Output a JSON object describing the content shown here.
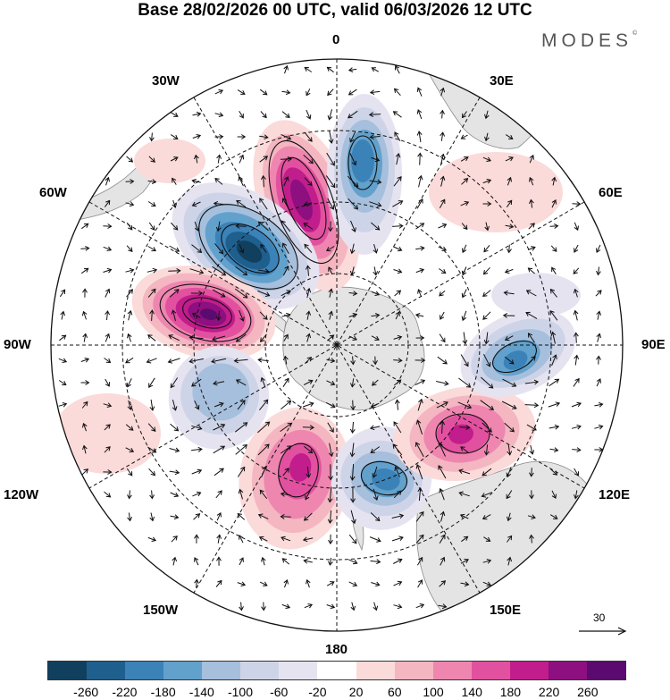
{
  "title": "Base 28/02/2026 00 UTC, valid 06/03/2026 12 UTC",
  "brand": "MODES",
  "brand_mark": "©",
  "longitude_labels": {
    "lon_0": "0",
    "lon_30e": "30E",
    "lon_60e": "60E",
    "lon_90e": "90E",
    "lon_120e": "120E",
    "lon_150e": "150E",
    "lon_180": "180",
    "lon_150w": "150W",
    "lon_120w": "120W",
    "lon_90w": "90W",
    "lon_60w": "60W",
    "lon_30w": "30W"
  },
  "vector_scale": "30",
  "colorbar": {
    "ticks": [
      "-260",
      "-220",
      "-180",
      "-140",
      "-100",
      "-60",
      "-20",
      "20",
      "60",
      "100",
      "140",
      "180",
      "220",
      "260"
    ],
    "colors": [
      "#11405f",
      "#1f5f8e",
      "#3b82b8",
      "#62a1cc",
      "#a6bfdc",
      "#ced4e8",
      "#e6e3f1",
      "#ffffff",
      "#fbdada",
      "#f4b6c1",
      "#ee86b0",
      "#e2519f",
      "#c21d8c",
      "#8e0f7f",
      "#5b0b6f"
    ]
  },
  "anomalies": [
    {
      "name": "positive-anomaly-south-atlantic",
      "sign": "positive",
      "peak": 220
    },
    {
      "name": "negative-anomaly-south-atlantic",
      "sign": "negative",
      "peak": -260
    },
    {
      "name": "negative-anomaly-near-0",
      "sign": "negative",
      "peak": -180
    },
    {
      "name": "positive-anomaly-drake-passage",
      "sign": "positive",
      "peak": 260
    },
    {
      "name": "negative-anomaly-southeast-pacific",
      "sign": "negative",
      "peak": -140
    },
    {
      "name": "positive-anomaly-south-pacific",
      "sign": "positive",
      "peak": 180
    },
    {
      "name": "negative-anomaly-ross-sea",
      "sign": "negative",
      "peak": -180
    },
    {
      "name": "positive-anomaly-southern-indian-ocean",
      "sign": "positive",
      "peak": 180
    },
    {
      "name": "negative-anomaly-90e",
      "sign": "negative",
      "peak": -180
    }
  ]
}
